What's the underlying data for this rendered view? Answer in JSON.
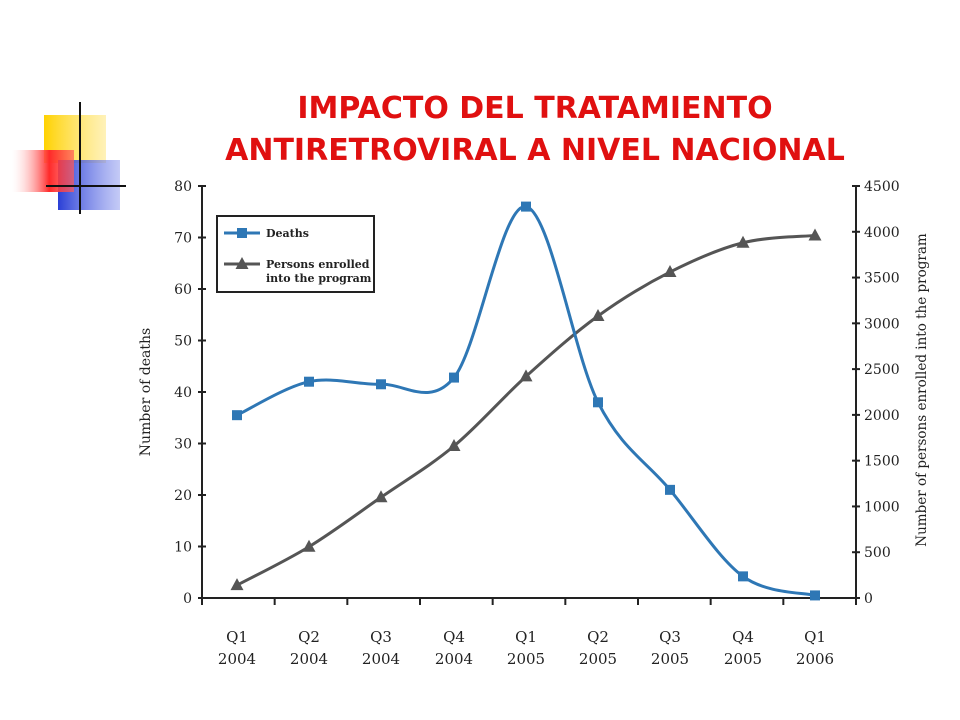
{
  "slide": {
    "title_line1": "IMPACTO DEL TRATAMIENTO",
    "title_line2": "ANTIRETROVIRAL A NIVEL NACIONAL"
  },
  "colors": {
    "title": "#e01010",
    "deaths": "#2e77b5",
    "enrolled": "#555555",
    "logo_yellow": "#ffd200",
    "logo_red": "#ff2a2a",
    "logo_blue": "#2a3fd6"
  },
  "chart_data": {
    "type": "line",
    "categories": [
      [
        "Q1",
        "2004"
      ],
      [
        "Q2",
        "2004"
      ],
      [
        "Q3",
        "2004"
      ],
      [
        "Q4",
        "2004"
      ],
      [
        "Q1",
        "2005"
      ],
      [
        "Q2",
        "2005"
      ],
      [
        "Q3",
        "2005"
      ],
      [
        "Q4",
        "2005"
      ],
      [
        "Q1",
        "2006"
      ]
    ],
    "series": [
      {
        "name": "Deaths",
        "axis": "left",
        "marker": "square",
        "values": [
          35.5,
          42,
          41.5,
          42.8,
          76,
          38,
          21,
          4.2,
          0.5
        ]
      },
      {
        "name": "Persons enrolled into the program",
        "axis": "right",
        "marker": "triangle",
        "values": [
          140,
          560,
          1100,
          1660,
          2420,
          3080,
          3560,
          3880,
          3960
        ]
      }
    ],
    "ylabel": "Number of deaths",
    "ylabel_right": "Number of persons enrolled into the program",
    "ylim": [
      0,
      80
    ],
    "ylim_right": [
      0,
      4500
    ],
    "yticks": [
      0,
      10,
      20,
      30,
      40,
      50,
      60,
      70,
      80
    ],
    "yticks_right": [
      0,
      500,
      1000,
      1500,
      2000,
      2500,
      3000,
      3500,
      4000,
      4500
    ],
    "legend": {
      "placement": "top-left",
      "entries": [
        "Deaths",
        "Persons enrolled",
        "into the program"
      ]
    },
    "grid": false
  }
}
